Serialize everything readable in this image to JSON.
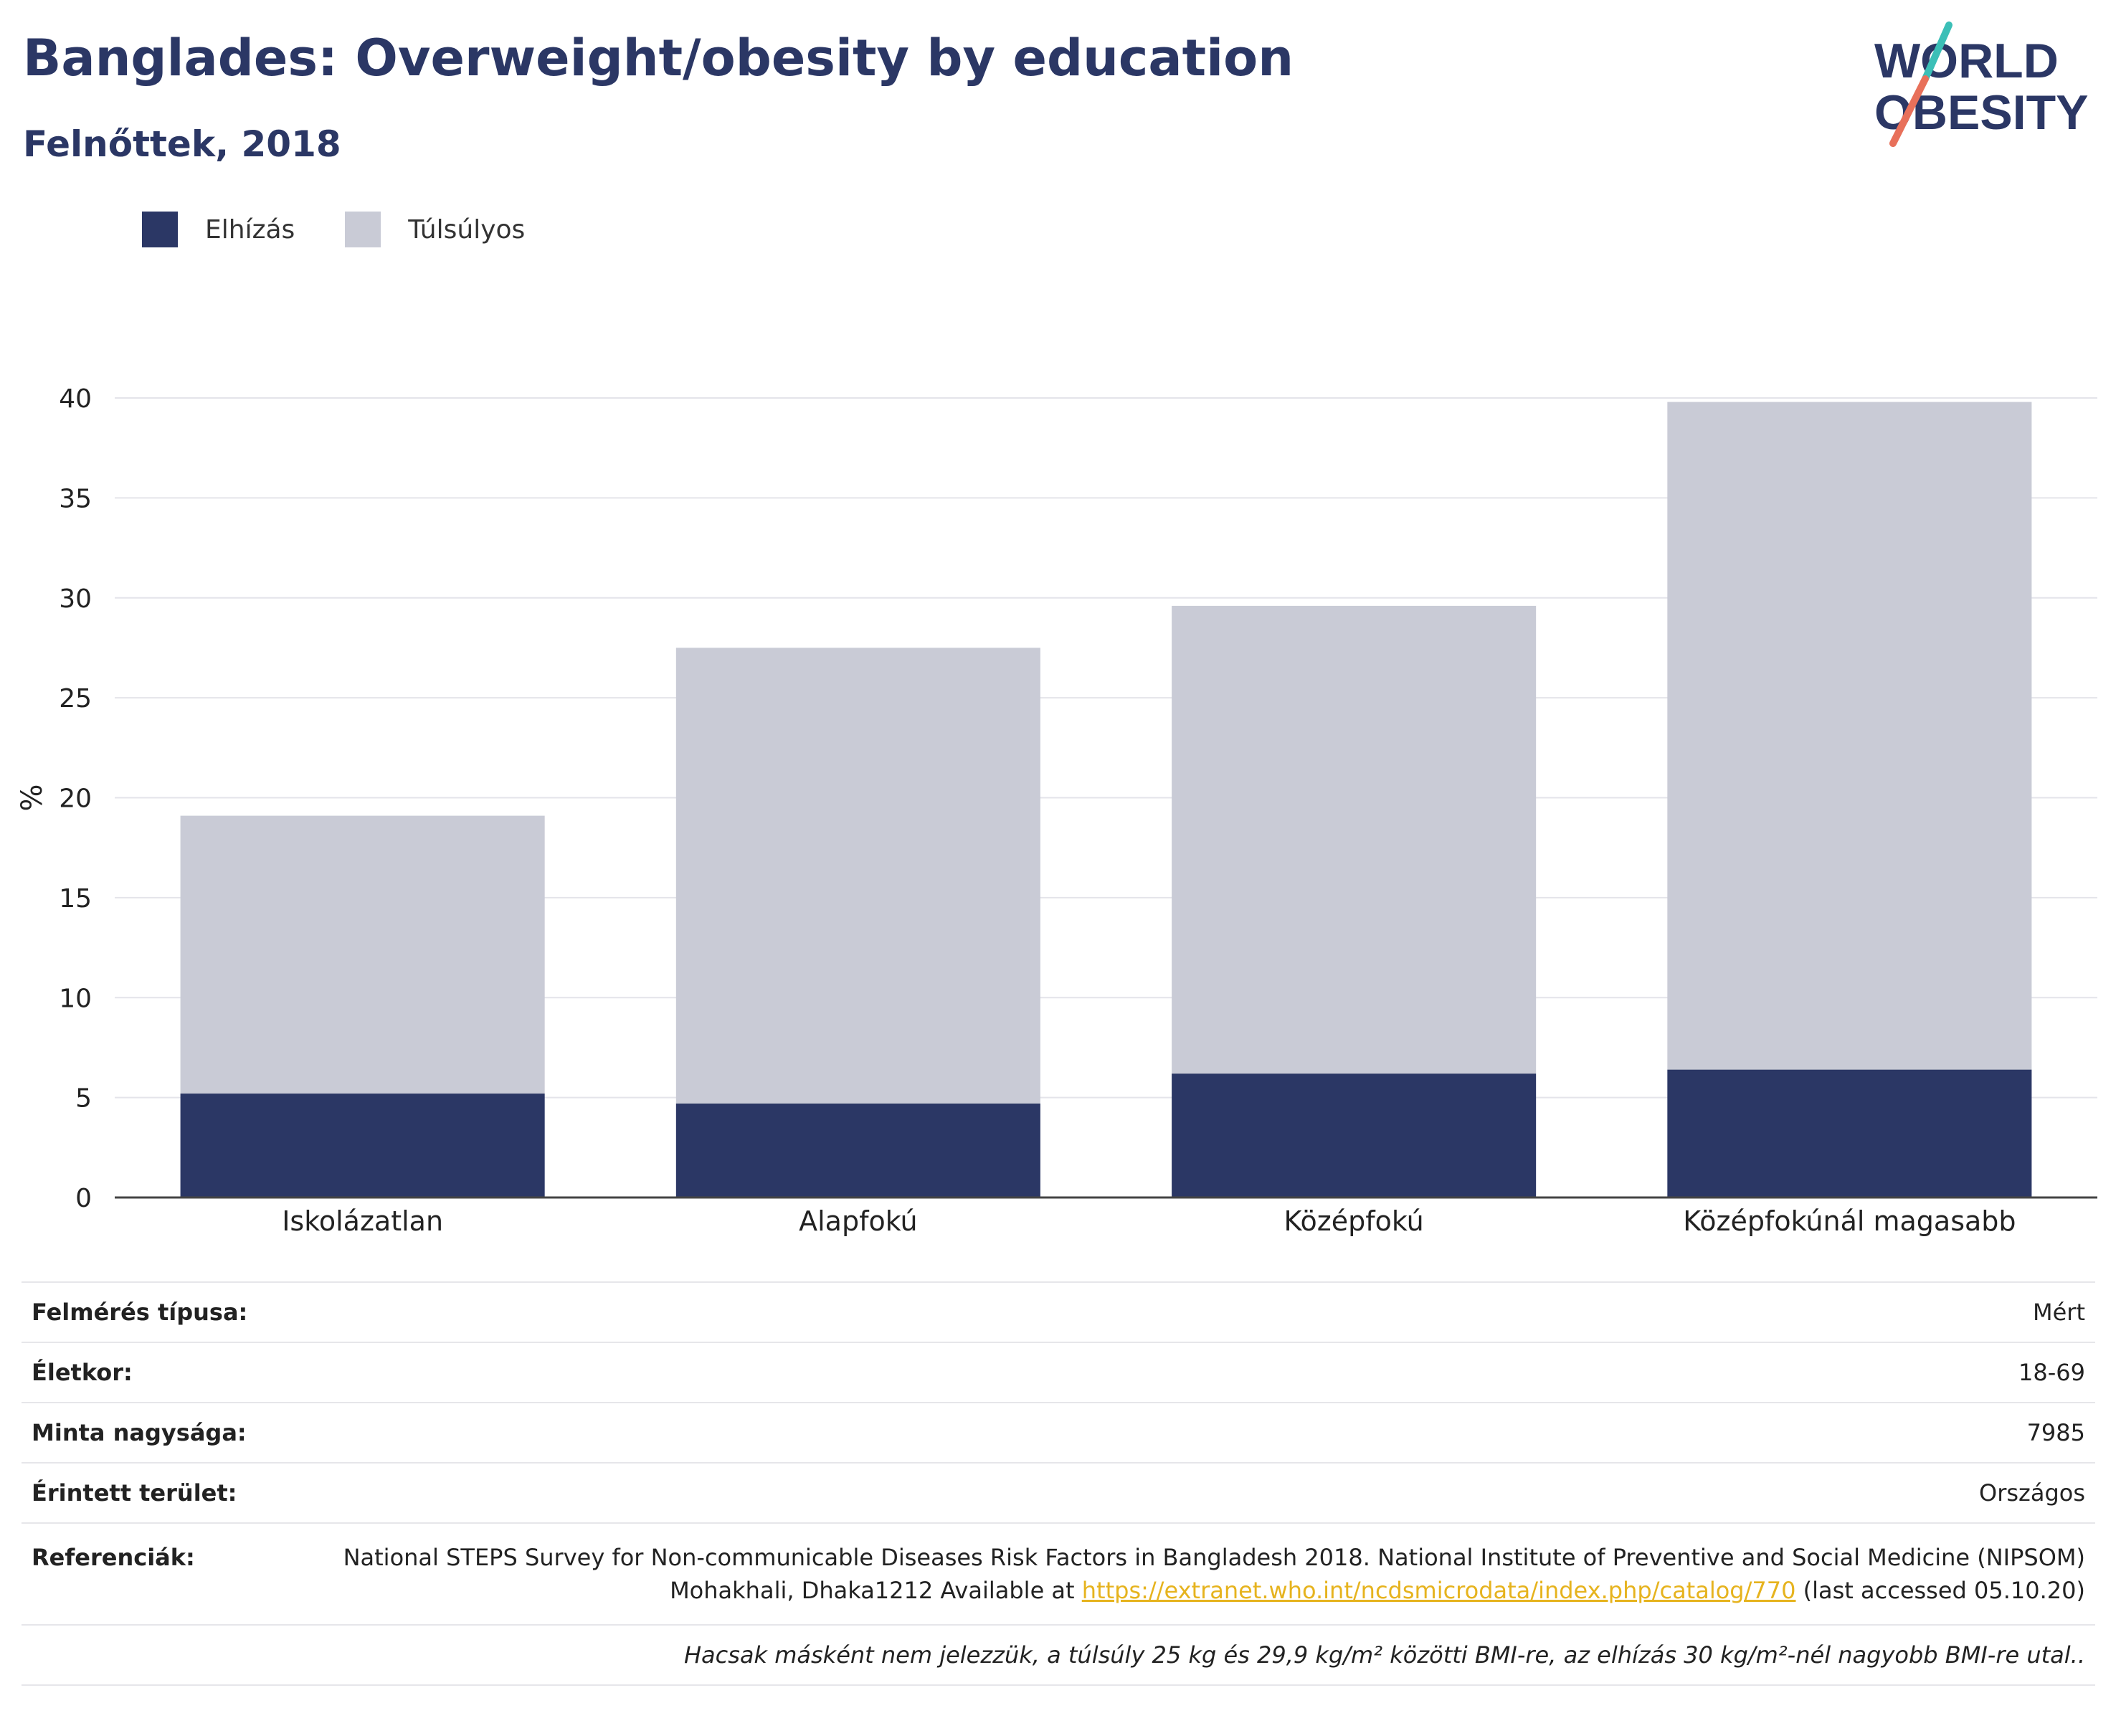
{
  "header": {
    "title": "Banglades: Overweight/obesity by education",
    "subtitle": "Felnőttek, 2018"
  },
  "logo": {
    "line1": "WORLD",
    "line2": "OBESITY",
    "colors": {
      "text": "#2b3765",
      "slash_top": "#3bbfb7",
      "slash_bottom": "#e8705a"
    }
  },
  "legend": [
    {
      "label": "Elhízás",
      "color": "#2b3765"
    },
    {
      "label": "Túlsúlyos",
      "color": "#c9cbd6"
    }
  ],
  "chart_data": {
    "type": "bar",
    "stacked": true,
    "categories": [
      "Iskolázatlan",
      "Alapfokú",
      "Középfokú",
      "Középfokúnál magasabb"
    ],
    "series": [
      {
        "name": "Elhízás",
        "values": [
          5.2,
          4.7,
          6.2,
          6.4
        ],
        "color": "#2b3765"
      },
      {
        "name": "Túlsúlyos",
        "values": [
          13.9,
          22.8,
          23.4,
          33.4
        ],
        "color": "#c9cbd6"
      }
    ],
    "ylabel": "%",
    "xlabel": "",
    "ylim": [
      0,
      40
    ],
    "yticks": [
      0,
      5,
      10,
      15,
      20,
      25,
      30,
      35,
      40
    ],
    "grid": true,
    "legend_position": "top-left"
  },
  "info": {
    "rows": [
      {
        "key": "Felmérés típusa:",
        "value": "Mért"
      },
      {
        "key": "Életkor:",
        "value": "18-69"
      },
      {
        "key": "Minta nagysága:",
        "value": "7985"
      },
      {
        "key": "Érintett terület:",
        "value": "Országos"
      }
    ],
    "reference": {
      "key": "Referenciák:",
      "text_before": "National STEPS Survey for Non-communicable Diseases Risk Factors in Bangladesh 2018. National Institute of Preventive and Social Medicine (NIPSOM) Mohakhali, Dhaka1212 Available at",
      "link": "https://extranet.who.int/ncdsmicrodata/index.php/catalog/770",
      "text_after": "(last accessed 05.10.20)"
    },
    "note": "Hacsak másként nem jelezzük, a túlsúly 25 kg és 29,9 kg/m² közötti BMI-re, az elhízás 30 kg/m²-nél nagyobb BMI-re utal.."
  }
}
